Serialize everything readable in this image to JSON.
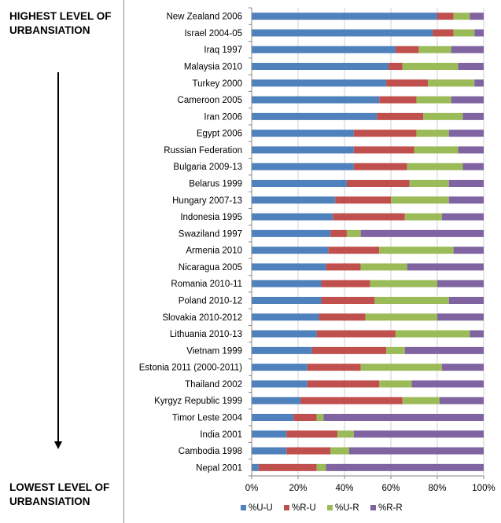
{
  "side_labels": {
    "top": "HIGHEST LEVEL OF\nURBANSIATION",
    "bottom": "LOWEST LEVEL OF\nURBANSIATION"
  },
  "colors": {
    "urban_urban": "#4f81bd",
    "rural_urban": "#c0504d",
    "urban_rural": "#9bbb59",
    "rural_rural": "#8064a2",
    "grid": "#d0d0d0",
    "axis": "#868686"
  },
  "chart_data": {
    "type": "bar",
    "orientation": "horizontal",
    "stacked": "percent",
    "categories": [
      "New Zealand 2006",
      "Israel 2004-05",
      "Iraq 1997",
      "Malaysia 2010",
      "Turkey 2000",
      "Cameroon 2005",
      "Iran 2006",
      "Egypt 2006",
      "Russian Federation",
      "Bulgaria 2009-13",
      "Belarus 1999",
      "Hungary 2007-13",
      "Indonesia 1995",
      "Swaziland 1997",
      "Armenia 2010",
      "Nicaragua 2005",
      "Romania 2010-11",
      "Poland 2010-12",
      "Slovakia 2010-2012",
      "Lithuania 2010-13",
      "Vietnam 1999",
      "Estonia 2011 (2000-2011)",
      "Thailand 2002",
      "Kyrgyz Republic 1999",
      "Timor Leste 2004",
      "India 2001",
      "Cambodia 1998",
      "Nepal 2001"
    ],
    "series": [
      {
        "name": "%U-U",
        "values": [
          80,
          78,
          62,
          59,
          58,
          55,
          54,
          44,
          44,
          44,
          41,
          36,
          35,
          34,
          33,
          32,
          30,
          30,
          29,
          28,
          26,
          24,
          24,
          21,
          18,
          15,
          15,
          3
        ]
      },
      {
        "name": "%R-U",
        "values": [
          7,
          9,
          10,
          6,
          18,
          16,
          20,
          27,
          26,
          23,
          27,
          24,
          31,
          7,
          22,
          15,
          21,
          23,
          20,
          34,
          32,
          23,
          31,
          44,
          10,
          22,
          19,
          25
        ]
      },
      {
        "name": "%U-R",
        "values": [
          7,
          9,
          14,
          24,
          20,
          15,
          17,
          14,
          19,
          24,
          17,
          25,
          16,
          6,
          32,
          20,
          29,
          32,
          31,
          32,
          8,
          35,
          14,
          16,
          3,
          7,
          8,
          4
        ]
      },
      {
        "name": "%R-R",
        "values": [
          6,
          4,
          14,
          11,
          4,
          14,
          9,
          15,
          11,
          9,
          15,
          15,
          18,
          53,
          13,
          33,
          20,
          15,
          20,
          6,
          34,
          18,
          31,
          19,
          69,
          56,
          58,
          68
        ]
      }
    ],
    "x_ticks": [
      "0%",
      "20%",
      "40%",
      "60%",
      "80%",
      "100%"
    ],
    "xlim": [
      0,
      100
    ],
    "grid": true,
    "legend_position": "bottom"
  }
}
